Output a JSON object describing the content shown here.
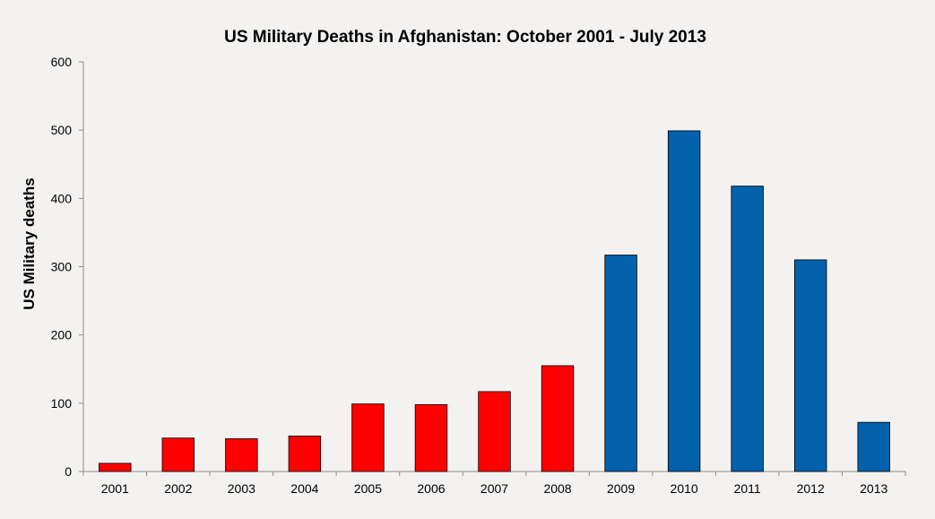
{
  "chart_data": {
    "type": "bar",
    "title": "US Military Deaths in Afghanistan: October 2001 - July 2013",
    "xlabel": "",
    "ylabel": "US Military deaths",
    "ylim": [
      0,
      600
    ],
    "yticks": [
      "0",
      "100",
      "200",
      "300",
      "400",
      "500",
      "600"
    ],
    "grid": false,
    "categories": [
      "2001",
      "2002",
      "2003",
      "2004",
      "2005",
      "2006",
      "2007",
      "2008",
      "2009",
      "2010",
      "2011",
      "2012",
      "2013"
    ],
    "values": [
      12,
      49,
      48,
      52,
      99,
      98,
      117,
      155,
      317,
      499,
      418,
      310,
      72
    ],
    "bar_colors": [
      "#ff0000",
      "#ff0000",
      "#ff0000",
      "#ff0000",
      "#ff0000",
      "#ff0000",
      "#ff0000",
      "#ff0000",
      "#0461ac",
      "#0461ac",
      "#0461ac",
      "#0461ac",
      "#0461ac"
    ]
  }
}
